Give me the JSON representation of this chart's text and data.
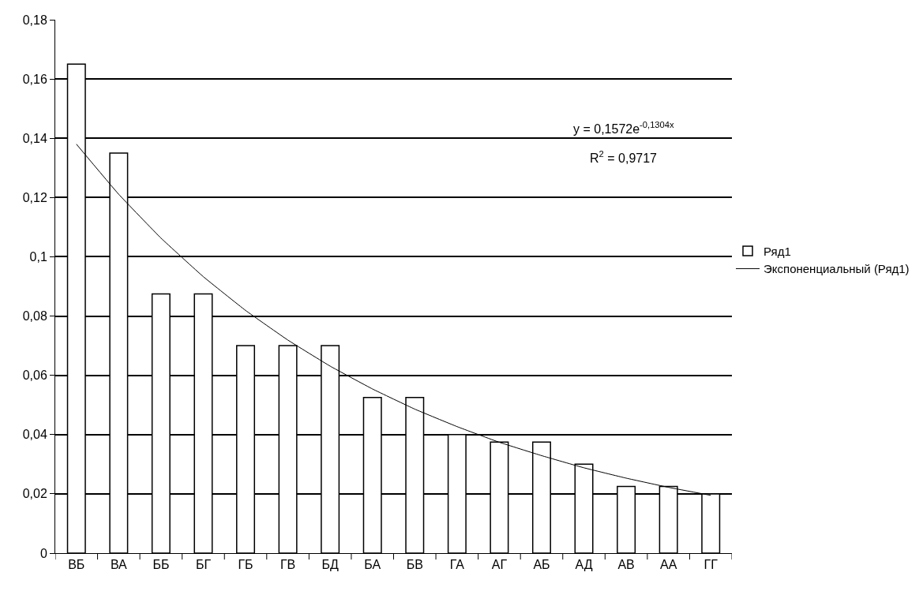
{
  "chart_data": {
    "type": "bar",
    "categories": [
      "ВБ",
      "ВА",
      "ББ",
      "БГ",
      "ГБ",
      "ГВ",
      "БД",
      "БА",
      "БВ",
      "ГА",
      "АГ",
      "АБ",
      "АД",
      "АВ",
      "АА",
      "ГГ"
    ],
    "series": [
      {
        "name": "Ряд1",
        "color": "#ffffff",
        "values": [
          0.165,
          0.135,
          0.0875,
          0.0875,
          0.07,
          0.07,
          0.07,
          0.0525,
          0.0525,
          0.04,
          0.0375,
          0.0375,
          0.03,
          0.0225,
          0.0225,
          0.02
        ]
      },
      {
        "name": "Экспоненциальный (Ряд1)",
        "type": "line",
        "color": "#000000",
        "values": [
          0.138,
          0.1211,
          0.1063,
          0.0933,
          0.0819,
          0.0719,
          0.0631,
          0.0554,
          0.0486,
          0.0427,
          0.0374,
          0.0329,
          0.0288,
          0.0253,
          0.0222,
          0.0195
        ]
      }
    ],
    "annotations": [
      "y = 0,1572e$^{-0,1304x}$",
      "R$^{2}$ = 0,9717"
    ],
    "ylim": [
      0,
      0.18
    ],
    "yticks": [
      {
        "value": 0,
        "label": "0"
      },
      {
        "value": 0.02,
        "label": "0,02"
      },
      {
        "value": 0.04,
        "label": "0,04"
      },
      {
        "value": 0.06,
        "label": "0,06"
      },
      {
        "value": 0.08,
        "label": "0,08"
      },
      {
        "value": 0.1,
        "label": "0,1"
      },
      {
        "value": 0.12,
        "label": "0,12"
      },
      {
        "value": 0.14,
        "label": "0,14"
      },
      {
        "value": 0.16,
        "label": "0,16"
      },
      {
        "value": 0.18,
        "label": "0,18"
      }
    ],
    "grid": "y",
    "legend": "right",
    "marker": "none"
  }
}
